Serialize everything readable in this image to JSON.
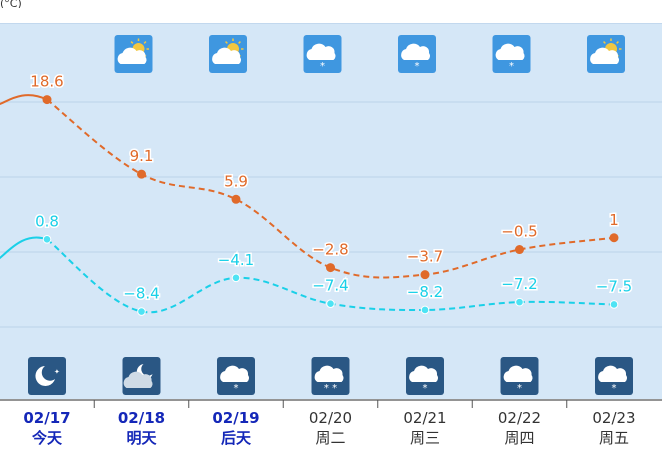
{
  "header": {
    "fragment": "(°C)"
  },
  "chart_data": {
    "type": "line",
    "categories": [
      "02/17",
      "02/18",
      "02/19",
      "02/20",
      "02/21",
      "02/22",
      "02/23"
    ],
    "day_labels": [
      "今天",
      "明天",
      "后天",
      "周二",
      "周三",
      "周四",
      "周五"
    ],
    "highlighted_days": [
      0,
      1,
      2
    ],
    "series": [
      {
        "key": "high",
        "color": "#e06a2a",
        "values": [
          18.6,
          9.1,
          5.9,
          -2.8,
          -3.7,
          -0.5,
          1
        ],
        "labels": [
          "18.6",
          "9.1",
          "5.9",
          "−2.8",
          "−3.7",
          "−0.5",
          "1"
        ]
      },
      {
        "key": "low",
        "color": "#1ad0e8",
        "values": [
          0.8,
          -8.4,
          -4.1,
          -7.4,
          -8.2,
          -7.2,
          -7.5
        ],
        "labels": [
          "0.8",
          "−8.4",
          "−4.1",
          "−7.4",
          "−8.2",
          "−7.2",
          "−7.5"
        ]
      }
    ],
    "grid": true,
    "day_weather_icons": [
      "partly-cloudy-icon",
      "partly-cloudy-icon",
      "snow-icon",
      "snow-icon",
      "snow-icon",
      "partly-cloudy-icon",
      "partly-cloudy-icon"
    ],
    "night_weather_icons": [
      "moon-icon",
      "cloudy-night-icon",
      "snow-icon",
      "heavy-snow-icon",
      "snow-icon",
      "snow-icon",
      "snow-icon"
    ],
    "colors": {
      "plot_bg": "#d5e7f7",
      "day_icon_bg": "#3f97e0",
      "night_icon_bg": "#2a5784",
      "highlight_text": "#1427b8",
      "normal_text": "#333333"
    }
  }
}
